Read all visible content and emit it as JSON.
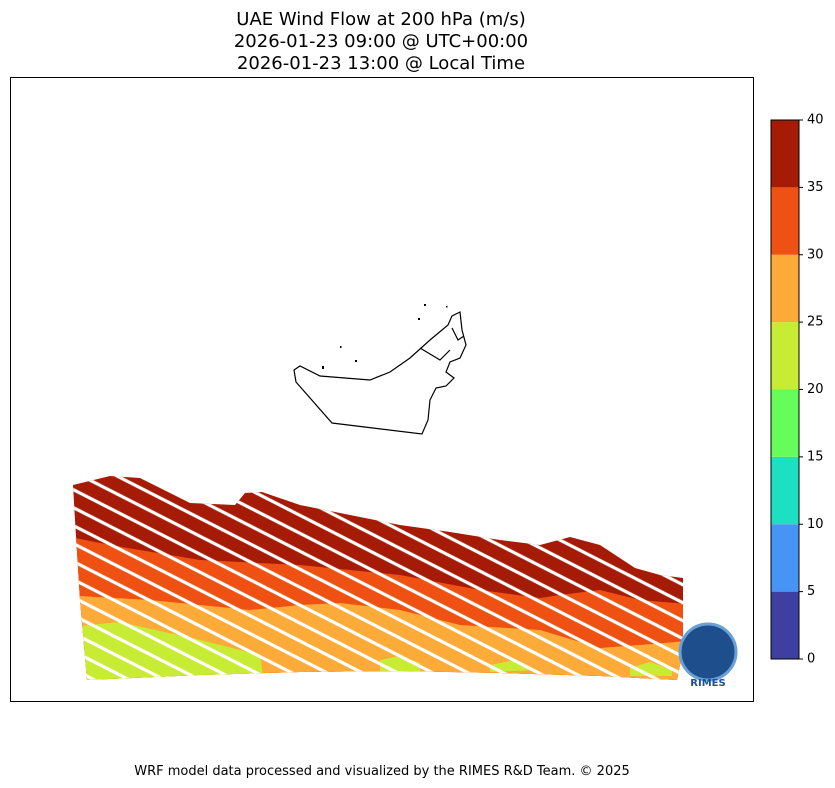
{
  "title": [
    "UAE Wind Flow at 200 hPa (m/s)",
    "2026-01-23 09:00 @ UTC+00:00",
    "2026-01-23 13:00 @ Local Time"
  ],
  "colorbar": {
    "bounds": [
      0,
      5,
      10,
      15,
      20,
      25,
      30,
      35,
      40
    ],
    "colors": [
      "#3f3fa2",
      "#4694f6",
      "#1ddfc1",
      "#66fd5a",
      "#c8ec33",
      "#fdab38",
      "#ee5112",
      "#a51b05"
    ],
    "ticks": [
      0,
      5,
      10,
      15,
      20,
      25,
      30,
      35,
      40
    ]
  },
  "logo": "RIMES",
  "footer": "WRF model data processed and visualized by the RIMES R&D Team. © 2025"
}
